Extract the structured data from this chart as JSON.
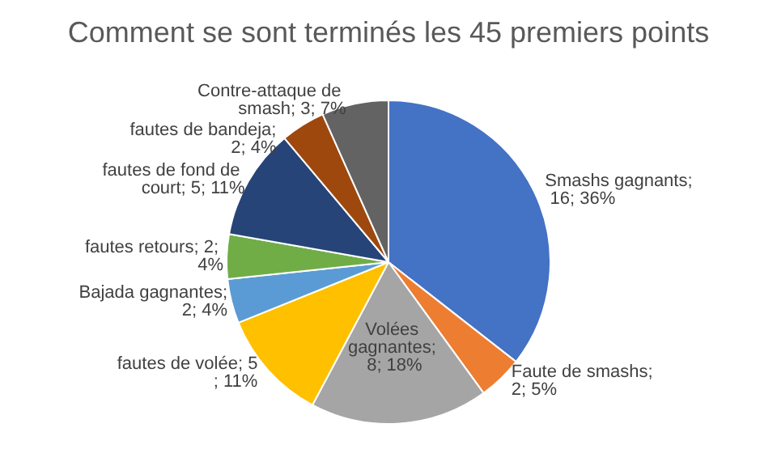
{
  "chart_data": {
    "type": "pie",
    "title": "Comment se sont terminés les 45 premiers points",
    "categories": [
      "Smashs gagnants",
      "Faute de smashs",
      "Volées gagnantes",
      "fautes de volée",
      "Bajada gagnantes",
      "fautes retours",
      "fautes de fond de court",
      "fautes de bandeja",
      "Contre-attaque de smash"
    ],
    "values": [
      16,
      2,
      8,
      5,
      2,
      2,
      5,
      2,
      3
    ],
    "value_labels": [
      "; 16; 36%",
      "; 2; 5%",
      "; 8; 18%",
      "; 5; 11%",
      "; 2; 4%",
      "; 2; 4%",
      "; 5; 11%",
      "; 2; 4%",
      "; 3; 7%"
    ],
    "colors": [
      "#4472c4",
      "#ed7d31",
      "#a5a5a5",
      "#ffc000",
      "#5b9bd5",
      "#70ad47",
      "#264478",
      "#9e480e",
      "#636363"
    ],
    "legend": false
  }
}
